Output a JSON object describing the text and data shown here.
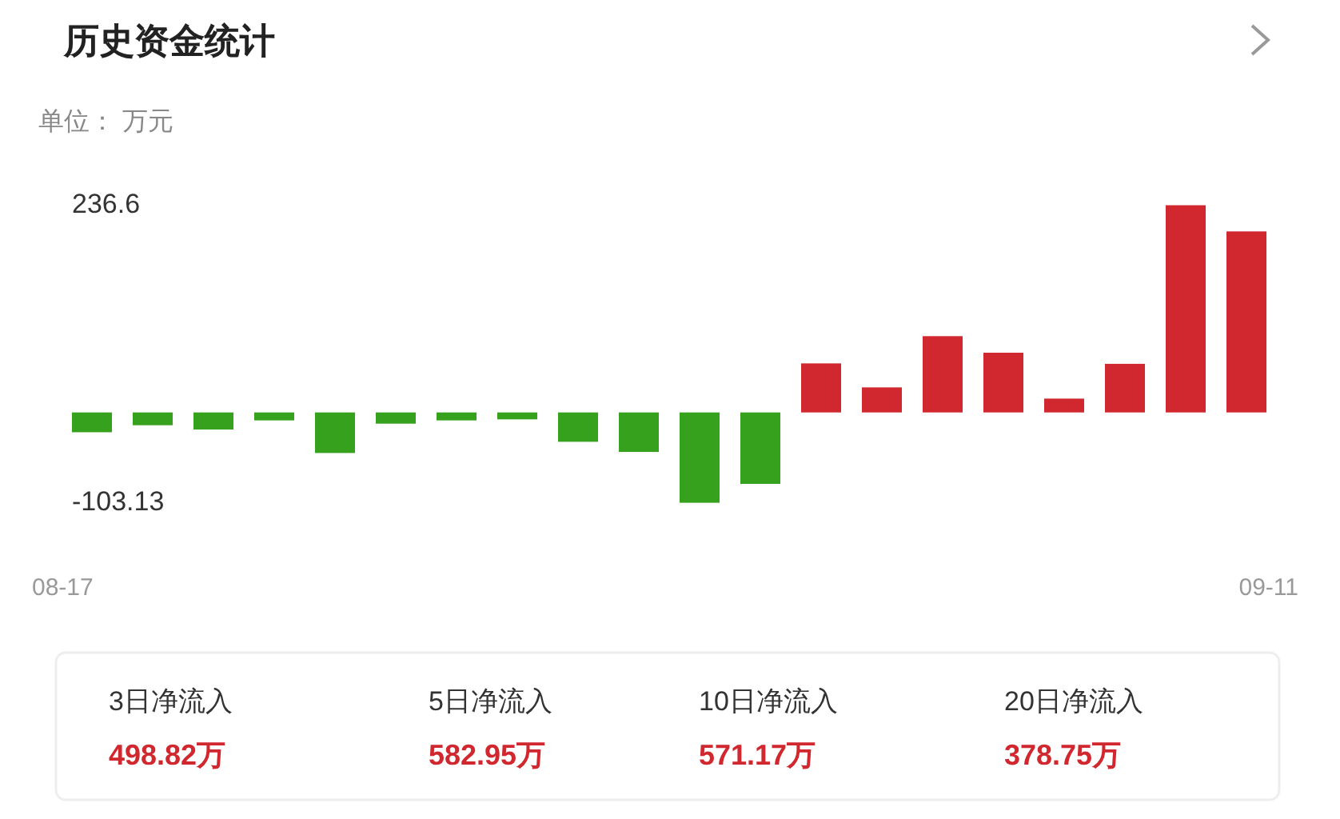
{
  "chart_data": {
    "type": "bar",
    "title": "历史资金统计",
    "subtitle": "单位： 万元",
    "categories": [
      "08-17",
      null,
      null,
      null,
      null,
      null,
      null,
      null,
      null,
      null,
      null,
      null,
      null,
      null,
      null,
      null,
      null,
      null,
      null,
      "09-11"
    ],
    "values": [
      -22.6,
      -14.6,
      -19.5,
      -9.1,
      -46.3,
      -12.8,
      -9.1,
      -7.9,
      -33.5,
      -45.1,
      -103.13,
      -81.6,
      56.0,
      28.6,
      87.1,
      68.2,
      15.8,
      55.5,
      236.6,
      206.7
    ],
    "colors": [
      "#36a11c",
      "#36a11c",
      "#36a11c",
      "#36a11c",
      "#36a11c",
      "#36a11c",
      "#36a11c",
      "#36a11c",
      "#36a11c",
      "#36a11c",
      "#36a11c",
      "#36a11c",
      "#d0282e",
      "#d0282e",
      "#d0282e",
      "#d0282e",
      "#d0282e",
      "#d0282e",
      "#d0282e",
      "#d0282e"
    ],
    "ylim": [
      -103.13,
      236.6
    ],
    "yticks": [
      236.6,
      -103.13
    ],
    "annotations": [
      "3日净流入",
      "498.82万",
      "5日净流入",
      "582.95万",
      "10日净流入",
      "571.17万",
      "20日净流入",
      "378.75万"
    ]
  }
}
